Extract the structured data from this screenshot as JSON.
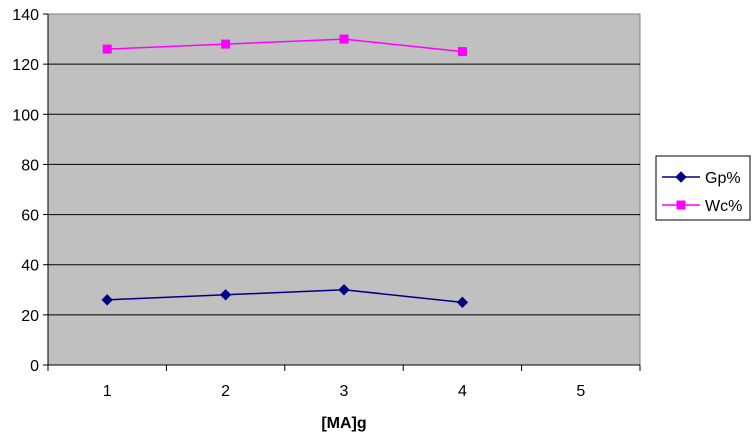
{
  "chart_data": {
    "type": "line",
    "title": "",
    "xlabel": "[MA]g",
    "ylabel": "",
    "x": [
      1,
      2,
      3,
      4
    ],
    "x_ticks": [
      "1",
      "2",
      "3",
      "4",
      "5"
    ],
    "xlim": [
      0.5,
      5.5
    ],
    "ylim": [
      0,
      140
    ],
    "y_ticks": [
      "0",
      "20",
      "40",
      "60",
      "80",
      "100",
      "120",
      "140"
    ],
    "grid": true,
    "legend": "right",
    "series": [
      {
        "name": "Gp%",
        "values": [
          26,
          28,
          30,
          25
        ],
        "color": "#000080",
        "marker": "diamond"
      },
      {
        "name": "Wc%",
        "values": [
          126,
          128,
          130,
          125
        ],
        "color": "#FF00FF",
        "marker": "square"
      }
    ],
    "plot_background": "#C0C0C0"
  }
}
